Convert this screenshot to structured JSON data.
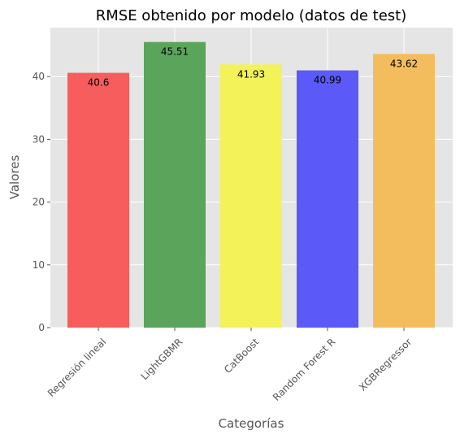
{
  "chart_data": {
    "type": "bar",
    "title": "RMSE obtenido por modelo (datos de test)",
    "xlabel": "Categorías",
    "ylabel": "Valores",
    "categories": [
      "Regresión lineal",
      "LightGBMR",
      "CatBoost",
      "Random Forest R",
      "XGBRegressor"
    ],
    "values": [
      40.6,
      45.51,
      41.93,
      40.99,
      43.62
    ],
    "value_labels": [
      "40.6",
      "45.51",
      "41.93",
      "40.99",
      "43.62"
    ],
    "colors": [
      "#f75d5d",
      "#5ba45b",
      "#f3f359",
      "#5b59f7",
      "#f3bd5d"
    ],
    "ylim": [
      0,
      47.8
    ],
    "yticks": [
      0,
      10,
      20,
      30,
      40
    ],
    "grid": true,
    "background": "#e5e5e5"
  }
}
